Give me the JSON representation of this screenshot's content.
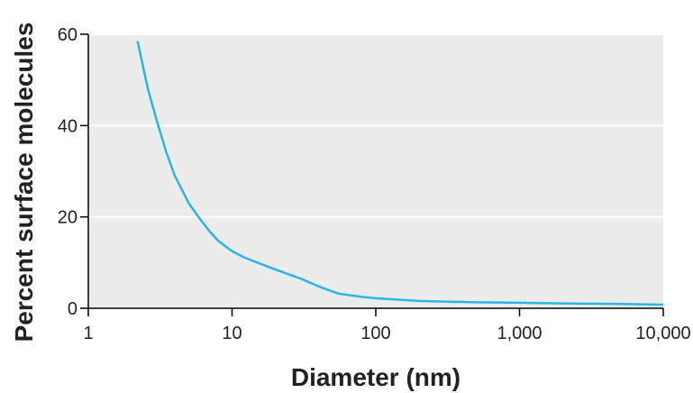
{
  "chart_data": {
    "type": "line",
    "xlabel": "Diameter (nm)",
    "ylabel": "Percent surface molecules",
    "x_scale": "log",
    "xlim": [
      1,
      10000
    ],
    "ylim": [
      0,
      60
    ],
    "x_ticks": [
      1,
      10,
      100,
      1000,
      10000
    ],
    "x_tick_labels": [
      "1",
      "10",
      "100",
      "1,000",
      "10,000"
    ],
    "y_ticks": [
      0,
      20,
      40,
      60
    ],
    "y_tick_labels": [
      "0",
      "20",
      "40",
      "60"
    ],
    "grid": "horizontal",
    "legend": "none",
    "series": [
      {
        "x": [
          2.2,
          2.6,
          3,
          3.5,
          4,
          5,
          6,
          7,
          8,
          10,
          12,
          15,
          20,
          30,
          40,
          55,
          80,
          100,
          200,
          500,
          1000,
          2000,
          5000,
          10000
        ],
        "y": [
          58.5,
          48,
          41,
          34,
          29,
          23,
          19.5,
          16.8,
          14.8,
          12.5,
          11.2,
          10,
          8.5,
          6.5,
          4.8,
          3.2,
          2.5,
          2.2,
          1.6,
          1.3,
          1.2,
          1.05,
          0.95,
          0.8
        ]
      }
    ],
    "colors": {
      "line": "#29b6e6",
      "plot_background": "#ececec",
      "gridline": "#ffffff",
      "axis": "#000000"
    }
  }
}
